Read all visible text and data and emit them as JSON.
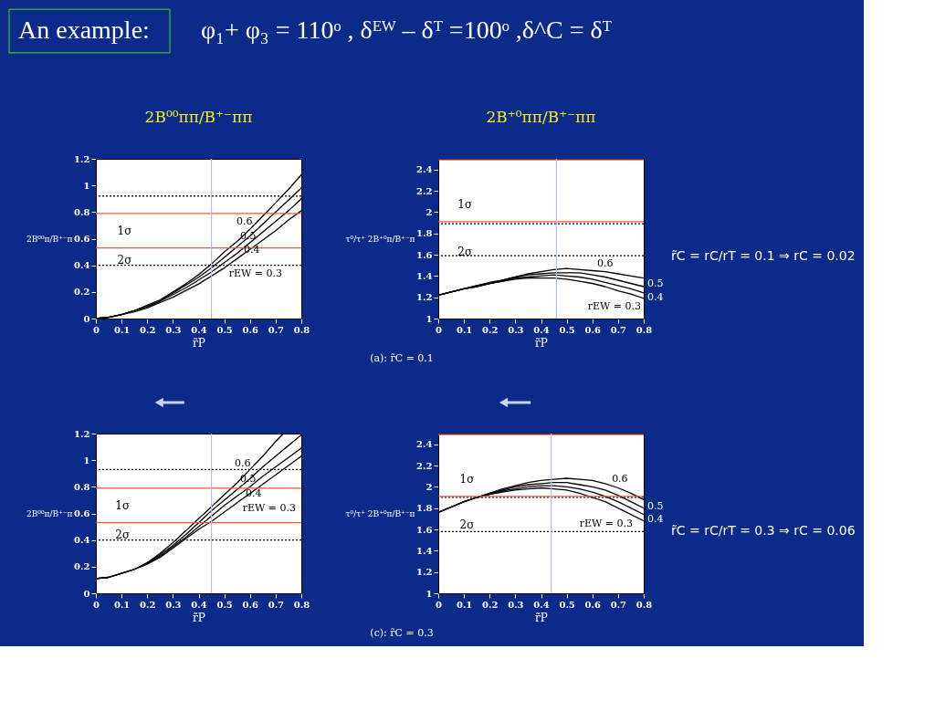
{
  "chart_data": [
    {
      "type": "line",
      "title": "2B⁰⁰ππ/B⁺⁻ππ",
      "xlabel": "r̃P",
      "ylabel": "2B⁰⁰π/B⁺⁻π",
      "x": [
        0,
        0.05,
        0.1,
        0.15,
        0.2,
        0.25,
        0.3,
        0.35,
        0.4,
        0.45,
        0.5,
        0.55,
        0.6,
        0.65,
        0.7,
        0.75,
        0.8
      ],
      "series": [
        {
          "name": "rEW = 0.3",
          "color": "#000000",
          "values": [
            0,
            0.01,
            0.03,
            0.05,
            0.08,
            0.12,
            0.16,
            0.21,
            0.26,
            0.32,
            0.38,
            0.45,
            0.52,
            0.59,
            0.66,
            0.74,
            0.81
          ]
        },
        {
          "name": "0.4",
          "color": "#000000",
          "values": [
            0,
            0.01,
            0.03,
            0.06,
            0.09,
            0.13,
            0.18,
            0.23,
            0.29,
            0.35,
            0.42,
            0.49,
            0.57,
            0.65,
            0.73,
            0.81,
            0.9
          ]
        },
        {
          "name": "0.5",
          "color": "#000000",
          "values": [
            0,
            0.01,
            0.03,
            0.06,
            0.09,
            0.13,
            0.19,
            0.25,
            0.31,
            0.38,
            0.46,
            0.54,
            0.62,
            0.71,
            0.8,
            0.89,
            0.98
          ]
        },
        {
          "name": "0.6",
          "color": "#000000",
          "values": [
            0,
            0.01,
            0.03,
            0.06,
            0.1,
            0.14,
            0.2,
            0.26,
            0.33,
            0.41,
            0.5,
            0.58,
            0.67,
            0.77,
            0.87,
            0.97,
            1.08
          ]
        }
      ],
      "xlim": [
        0,
        0.8
      ],
      "xticks": [
        0,
        0.1,
        0.2,
        0.3,
        0.4,
        0.5,
        0.6,
        0.7,
        0.8
      ],
      "ylim": [
        0,
        1.2
      ],
      "yticks": [
        0,
        0.2,
        0.4,
        0.6,
        0.8,
        1,
        1.2
      ],
      "ref_lines": [
        {
          "axis": "y",
          "value": 0.92,
          "color": "#000000",
          "line_style": "dotted"
        },
        {
          "axis": "y",
          "value": 0.79,
          "color": "#f0583c"
        },
        {
          "axis": "y",
          "value": 0.53,
          "color": "#f0583c"
        },
        {
          "axis": "y",
          "value": 0.4,
          "color": "#000000",
          "line_style": "dotted"
        },
        {
          "axis": "x",
          "value": 0.45,
          "color": "#b4bcf0"
        }
      ],
      "annotations": [
        "An example:",
        "φ₁+ φ₃  = 110ᵒ , δᴱᵂ – δᵀ  =100ᵒ ,δ^C  = δᵀ",
        "1σ",
        "2σ"
      ]
    },
    {
      "type": "line",
      "title": "2B⁺⁰ππ/B⁺⁻ππ",
      "xlabel": "r̃P",
      "ylabel": "τ⁰/τ⁺ 2B⁺⁰π/B⁺⁻π",
      "x": [
        0,
        0.05,
        0.1,
        0.15,
        0.2,
        0.25,
        0.3,
        0.35,
        0.4,
        0.45,
        0.5,
        0.55,
        0.6,
        0.65,
        0.7,
        0.75,
        0.8
      ],
      "series": [
        {
          "name": "rEW = 0.3",
          "color": "#000000",
          "values": [
            1.22,
            1.25,
            1.28,
            1.3,
            1.33,
            1.35,
            1.37,
            1.38,
            1.38,
            1.38,
            1.37,
            1.35,
            1.33,
            1.3,
            1.26,
            1.23,
            1.19
          ]
        },
        {
          "name": "0.4",
          "color": "#000000",
          "values": [
            1.22,
            1.25,
            1.28,
            1.3,
            1.33,
            1.35,
            1.38,
            1.39,
            1.4,
            1.41,
            1.4,
            1.39,
            1.37,
            1.34,
            1.31,
            1.28,
            1.24
          ]
        },
        {
          "name": "0.5",
          "color": "#000000",
          "values": [
            1.22,
            1.25,
            1.28,
            1.31,
            1.33,
            1.36,
            1.39,
            1.41,
            1.42,
            1.43,
            1.43,
            1.43,
            1.41,
            1.39,
            1.36,
            1.33,
            1.3
          ]
        },
        {
          "name": "0.6",
          "color": "#000000",
          "values": [
            1.22,
            1.25,
            1.28,
            1.31,
            1.34,
            1.36,
            1.39,
            1.42,
            1.44,
            1.46,
            1.47,
            1.46,
            1.45,
            1.44,
            1.42,
            1.4,
            1.38
          ]
        }
      ],
      "xlim": [
        0,
        0.8
      ],
      "xticks": [
        0,
        0.1,
        0.2,
        0.3,
        0.4,
        0.5,
        0.6,
        0.7,
        0.8
      ],
      "ylim": [
        1,
        2.5
      ],
      "yticks": [
        1,
        1.2,
        1.4,
        1.6,
        1.8,
        2,
        2.2,
        2.4
      ],
      "ref_lines": [
        {
          "axis": "y",
          "value": 2.49,
          "color": "#f0583c"
        },
        {
          "axis": "y",
          "value": 1.91,
          "color": "#f0583c"
        },
        {
          "axis": "y",
          "value": 1.89,
          "color": "#000000",
          "line_style": "dotted"
        },
        {
          "axis": "y",
          "value": 1.59,
          "color": "#000000",
          "line_style": "dotted"
        },
        {
          "axis": "x",
          "value": 0.46,
          "color": "#b4bcf0"
        }
      ],
      "annotations": [
        "(a): r̃C = 0.1",
        "r̃C = rC/rT = 0.1 ⇒ rC = 0.02",
        "1σ",
        "2σ"
      ]
    },
    {
      "type": "line",
      "xlabel": "r̃P",
      "ylabel": "2B⁰⁰π/B⁺⁻π",
      "x": [
        0,
        0.05,
        0.1,
        0.15,
        0.2,
        0.25,
        0.3,
        0.35,
        0.4,
        0.45,
        0.5,
        0.55,
        0.6,
        0.65,
        0.7,
        0.75,
        0.8
      ],
      "series": [
        {
          "name": "rEW = 0.3",
          "color": "#000000",
          "values": [
            0.11,
            0.12,
            0.15,
            0.18,
            0.22,
            0.27,
            0.34,
            0.41,
            0.48,
            0.54,
            0.61,
            0.68,
            0.75,
            0.82,
            0.89,
            0.96,
            1.03
          ]
        },
        {
          "name": "0.4",
          "color": "#000000",
          "values": [
            0.11,
            0.12,
            0.15,
            0.18,
            0.22,
            0.28,
            0.35,
            0.42,
            0.5,
            0.58,
            0.66,
            0.73,
            0.8,
            0.88,
            0.95,
            1.02,
            1.09
          ]
        },
        {
          "name": "0.5",
          "color": "#000000",
          "values": [
            0.11,
            0.12,
            0.15,
            0.18,
            0.23,
            0.29,
            0.36,
            0.44,
            0.53,
            0.62,
            0.7,
            0.78,
            0.86,
            0.95,
            1.03,
            1.11,
            1.19
          ]
        },
        {
          "name": "0.6",
          "color": "#000000",
          "x": [
            0,
            0.05,
            0.1,
            0.15,
            0.2,
            0.25,
            0.3,
            0.35,
            0.4,
            0.45,
            0.5,
            0.55,
            0.6,
            0.65,
            0.7,
            0.73
          ],
          "values": [
            0.11,
            0.12,
            0.15,
            0.18,
            0.23,
            0.3,
            0.38,
            0.47,
            0.56,
            0.65,
            0.74,
            0.83,
            0.93,
            1.03,
            1.14,
            1.2
          ]
        }
      ],
      "xlim": [
        0,
        0.8
      ],
      "xticks": [
        0,
        0.1,
        0.2,
        0.3,
        0.4,
        0.5,
        0.6,
        0.7,
        0.8
      ],
      "ylim": [
        0,
        1.2
      ],
      "yticks": [
        0,
        0.2,
        0.4,
        0.6,
        0.8,
        1,
        1.2
      ],
      "ref_lines": [
        {
          "axis": "y",
          "value": 0.93,
          "color": "#000000",
          "line_style": "dotted"
        },
        {
          "axis": "y",
          "value": 0.79,
          "color": "#f0583c"
        },
        {
          "axis": "y",
          "value": 0.53,
          "color": "#f0583c"
        },
        {
          "axis": "y",
          "value": 0.4,
          "color": "#000000",
          "line_style": "dotted"
        },
        {
          "axis": "x",
          "value": 0.45,
          "color": "#b4bcf0"
        }
      ],
      "annotations": [
        "1σ",
        "2σ"
      ]
    },
    {
      "type": "line",
      "xlabel": "r̃P",
      "ylabel": "τ⁰/τ⁺ 2B⁺⁰π/B⁺⁻π",
      "x": [
        0,
        0.05,
        0.1,
        0.15,
        0.2,
        0.25,
        0.3,
        0.35,
        0.4,
        0.45,
        0.5,
        0.55,
        0.6,
        0.65,
        0.7,
        0.75,
        0.8
      ],
      "series": [
        {
          "name": "rEW = 0.3",
          "color": "#000000",
          "values": [
            1.76,
            1.81,
            1.86,
            1.9,
            1.93,
            1.95,
            1.97,
            1.98,
            1.99,
            1.98,
            1.97,
            1.94,
            1.9,
            1.86,
            1.8,
            1.74,
            1.68
          ]
        },
        {
          "name": "0.4",
          "color": "#000000",
          "values": [
            1.76,
            1.81,
            1.86,
            1.9,
            1.93,
            1.96,
            1.98,
            2.0,
            2.01,
            2.01,
            2.0,
            1.98,
            1.95,
            1.91,
            1.86,
            1.8,
            1.74
          ]
        },
        {
          "name": "0.5",
          "color": "#000000",
          "values": [
            1.76,
            1.81,
            1.86,
            1.9,
            1.94,
            1.97,
            2.0,
            2.02,
            2.03,
            2.04,
            2.04,
            2.02,
            2.0,
            1.97,
            1.92,
            1.86,
            1.8
          ]
        },
        {
          "name": "0.6",
          "color": "#000000",
          "values": [
            1.76,
            1.81,
            1.86,
            1.9,
            1.94,
            1.98,
            2.01,
            2.04,
            2.06,
            2.07,
            2.08,
            2.07,
            2.06,
            2.03,
            1.99,
            1.94,
            1.88
          ]
        }
      ],
      "xlim": [
        0,
        0.8
      ],
      "xticks": [
        0,
        0.1,
        0.2,
        0.3,
        0.4,
        0.5,
        0.6,
        0.7,
        0.8
      ],
      "ylim": [
        1,
        2.5
      ],
      "yticks": [
        1,
        1.2,
        1.4,
        1.6,
        1.8,
        2,
        2.2,
        2.4
      ],
      "ref_lines": [
        {
          "axis": "y",
          "value": 2.49,
          "color": "#f0583c"
        },
        {
          "axis": "y",
          "value": 1.91,
          "color": "#f0583c"
        },
        {
          "axis": "y",
          "value": 1.9,
          "color": "#000000",
          "line_style": "dotted"
        },
        {
          "axis": "y",
          "value": 1.58,
          "color": "#000000",
          "line_style": "dotted"
        },
        {
          "axis": "x",
          "value": 0.44,
          "color": "#b4bcf0"
        }
      ],
      "annotations": [
        "(c): r̃C = 0.3",
        "r̃C = rC/rT = 0.3 ⇒ rC = 0.06",
        "1σ",
        "2σ"
      ]
    }
  ]
}
